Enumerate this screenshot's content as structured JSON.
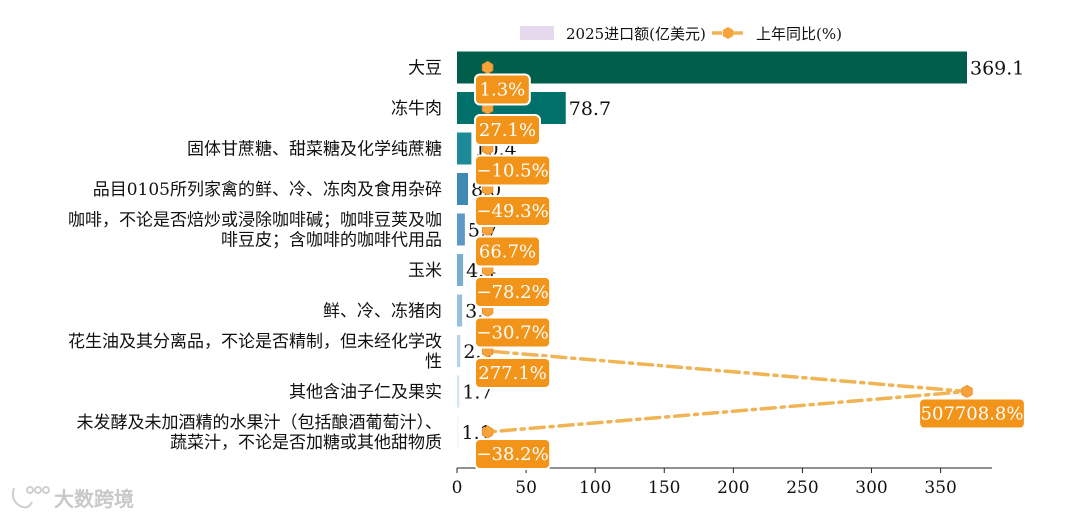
{
  "chart_data": {
    "type": "bar",
    "orientation": "horizontal",
    "categories": [
      "大豆",
      "冻牛肉",
      "固体甘蔗糖、甜菜糖及化学纯蔗糖",
      "品目0105所列家禽的鲜、冷、冻肉及食用杂碎",
      "咖啡，不论是否焙炒或浸除咖啡碱；咖啡豆荚及咖啡豆皮；含咖啡的咖啡代用品",
      "玉米",
      "鲜、冷、冻猪肉",
      "花生油及其分离品，不论是否精制，但未经化学改性",
      "其他含油子仁及果实",
      "未发酵及未加酒精的水果汁（包括酿酒葡萄汁）、蔬菜汁，不论是否加糖或其他甜物质"
    ],
    "category_lines": [
      [
        "大豆"
      ],
      [
        "冻牛肉"
      ],
      [
        "固体甘蔗糖、甜菜糖及化学纯蔗糖"
      ],
      [
        "品目0105所列家禽的鲜、冷、冻肉及食用杂碎"
      ],
      [
        "咖啡，不论是否焙炒或浸除咖啡碱；咖啡豆荚及咖",
        "啡豆皮；含咖啡的咖啡代用品"
      ],
      [
        "玉米"
      ],
      [
        "鲜、冷、冻猪肉"
      ],
      [
        "花生油及其分离品，不论是否精制，但未经化学改",
        "性"
      ],
      [
        "其他含油子仁及果实"
      ],
      [
        "未发酵及未加酒精的水果汁（包括酿酒葡萄汁）、",
        "蔬菜汁，不论是否加糖或其他甜物质"
      ]
    ],
    "series": [
      {
        "name": "2025进口额(亿美元)",
        "values": [
          369.1,
          78.7,
          10.4,
          8.0,
          5.7,
          4.4,
          3.7,
          2.4,
          1.7,
          1.1
        ],
        "value_labels": [
          "369.1",
          "78.7",
          "10.4",
          "8.0",
          "5.7",
          "4.4",
          "3.7",
          "2.4",
          "1.7",
          "1.1"
        ]
      },
      {
        "name": "上年同比(%)",
        "values": [
          1.3,
          27.1,
          -10.5,
          -49.3,
          66.7,
          -78.2,
          -30.7,
          277.1,
          507708.8,
          -38.2
        ],
        "value_labels": [
          "1.3%",
          "27.1%",
          "−10.5%",
          "−49.3%",
          "66.7%",
          "−78.2%",
          "−30.7%",
          "277.1%",
          "507708.8%",
          "−38.2%"
        ]
      }
    ],
    "xlim": [
      0,
      385
    ],
    "xticks": [
      0,
      50,
      100,
      150,
      200,
      250,
      300,
      350
    ],
    "bar_colors": [
      "#005f4b",
      "#00716a",
      "#1d8a99",
      "#3f8ab4",
      "#5b9ac4",
      "#7aaed1",
      "#98c0de",
      "#b7d4e9",
      "#d6e6f2",
      "#f2f6fa"
    ],
    "line_color": "#f0b455",
    "marker_color": "#f7a33a",
    "label_box_color": "#f29419",
    "legend_patch_color": "#e6d9ee",
    "legend_position": "top",
    "grid": false
  },
  "watermark": {
    "text": "大数跨境"
  }
}
